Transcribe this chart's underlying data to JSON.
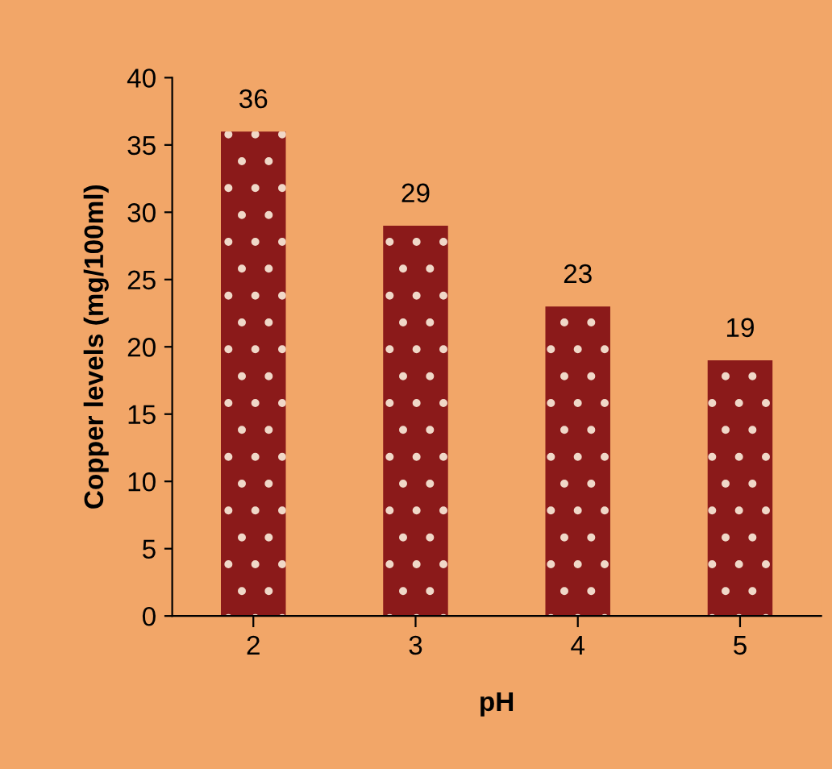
{
  "chart_data": {
    "type": "bar",
    "xlabel": "pH",
    "ylabel": "Copper levels (mg/100ml)",
    "categories": [
      "2",
      "3",
      "4",
      "5"
    ],
    "values": [
      36,
      29,
      23,
      19
    ],
    "color": "#8b1a1a",
    "ylim": [
      0,
      40
    ],
    "yticks": [
      0,
      5,
      10,
      15,
      20,
      25,
      30,
      35,
      40
    ],
    "grid": false,
    "data_labels": true
  }
}
